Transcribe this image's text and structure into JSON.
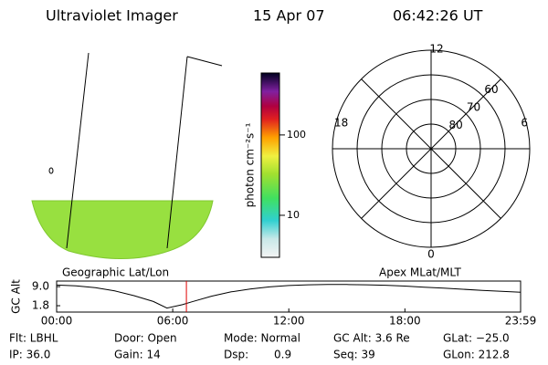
{
  "header": {
    "title": "Ultraviolet Imager",
    "date": "15 Apr 07",
    "time": "06:42:26 UT"
  },
  "map_panel": {
    "label": "Geographic Lat/Lon"
  },
  "colorbar": {
    "label": "photon cm⁻²s⁻¹",
    "lim": [
      3,
      590
    ],
    "ticks": [
      10,
      100
    ],
    "log": true
  },
  "polar": {
    "label": "Apex MLat/MLT",
    "mlt_labels": [
      "12",
      "18",
      "6",
      "0"
    ],
    "lat_rings": [
      60,
      70,
      80
    ],
    "lat_lim": [
      50,
      90
    ]
  },
  "orbit": {
    "ylabel": "GC Alt",
    "ylim": [
      -0.6,
      11.1
    ],
    "yticks": [
      {
        "value": 9.0,
        "label": "9.0"
      },
      {
        "value": 1.8,
        "label": "1.8"
      }
    ],
    "xlim": [
      0,
      23.98
    ],
    "xticks": [
      {
        "value": 0,
        "label": "00:00"
      },
      {
        "value": 6,
        "label": "06:00"
      },
      {
        "value": 12,
        "label": "12:00"
      },
      {
        "value": 18,
        "label": "18:00"
      },
      {
        "value": 23.98,
        "label": "23:59"
      }
    ],
    "hours": [
      0,
      1,
      2,
      3,
      4,
      5,
      5.7,
      6.5,
      7,
      8,
      9,
      10,
      11,
      12,
      13,
      14,
      15,
      16,
      17,
      18,
      19,
      20,
      21,
      22,
      23,
      23.98
    ],
    "gc_alt": [
      9.6,
      9.3,
      8.6,
      7.4,
      5.6,
      3.4,
      0.9,
      2.2,
      3.3,
      5.4,
      7.0,
      8.1,
      8.9,
      9.4,
      9.7,
      9.8,
      9.8,
      9.7,
      9.5,
      9.2,
      8.8,
      8.4,
      8.0,
      7.6,
      7.2,
      6.9
    ],
    "marker_hour": 6.707,
    "marker_color": "#e00000"
  },
  "info": {
    "rows": [
      [
        "Flt: LBHL",
        "Door: Open",
        "Mode: Normal",
        "GC Alt: 3.6 Re",
        "GLat: −25.0"
      ],
      [
        "IP: 36.0",
        "Gain: 14",
        "Dsp:",
        "Seq: 39",
        "GLon: 212.8"
      ]
    ],
    "dsp_value": "0.9"
  }
}
